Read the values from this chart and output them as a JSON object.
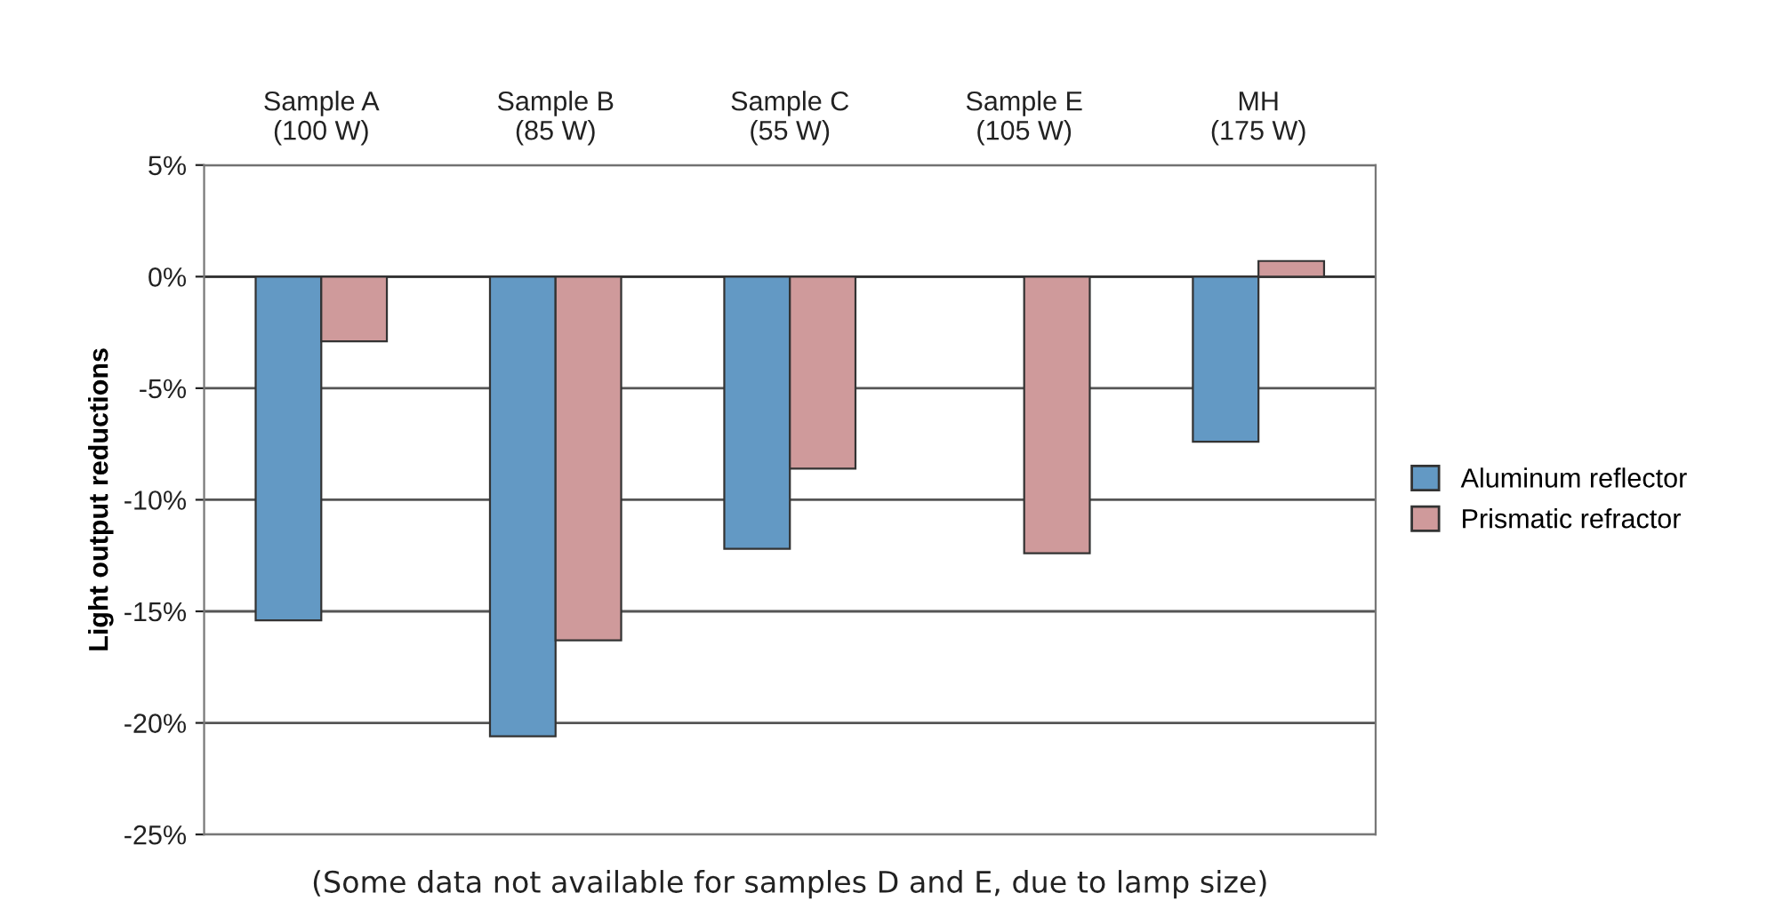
{
  "chart_data": {
    "type": "bar",
    "ylabel": "Light output reductions",
    "categories": [
      "Sample A\n(100 W)",
      "Sample B\n(85 W)",
      "Sample C\n(55 W)",
      "Sample E\n(105 W)",
      "MH\n(175 W)"
    ],
    "series": [
      {
        "name": "Aluminum reflector",
        "color": "#6399c4",
        "values": [
          -15.4,
          -20.6,
          -12.2,
          null,
          -7.4
        ]
      },
      {
        "name": "Prismatic refractor",
        "color": "#cf9a9b",
        "values": [
          -2.9,
          -16.3,
          -8.6,
          -12.4,
          0.7
        ]
      }
    ],
    "ylim": [
      -25,
      5
    ],
    "yticks": [
      {
        "value": 5,
        "label": "5%"
      },
      {
        "value": 0,
        "label": "0%"
      },
      {
        "value": -5,
        "label": "-5%"
      },
      {
        "value": -10,
        "label": "-10%"
      },
      {
        "value": -15,
        "label": "-15%"
      },
      {
        "value": -20,
        "label": "-20%"
      },
      {
        "value": -25,
        "label": "-25%"
      }
    ],
    "grid": "y",
    "legend": "right",
    "annotations": [
      "(Some data not available for samples D and E, due to lamp size)"
    ]
  }
}
